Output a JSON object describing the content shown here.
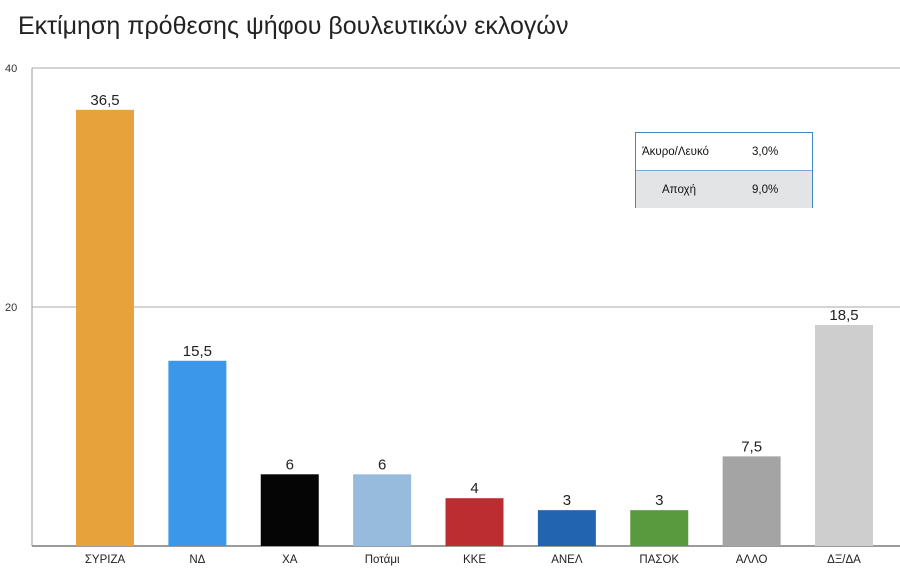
{
  "title": "Εκτίμηση πρόθεσης ψήφου βουλευτικών εκλογών",
  "chart_data": {
    "type": "bar",
    "categories": [
      "ΣΥΡΙΖΑ",
      "ΝΔ",
      "ΧΑ",
      "Ποτάμι",
      "ΚΚΕ",
      "ΑΝΕΛ",
      "ΠΑΣΟΚ",
      "ΑΛΛΟ",
      "ΔΞ/ΔΑ"
    ],
    "values": [
      36.5,
      15.5,
      6,
      6,
      4,
      3,
      3,
      7.5,
      18.5
    ],
    "value_labels": [
      "36,5",
      "15,5",
      "6",
      "6",
      "4",
      "3",
      "3",
      "7,5",
      "18,5"
    ],
    "colors": [
      "#e8a23c",
      "#3b97ea",
      "#050505",
      "#97bbdc",
      "#bb2d30",
      "#2264b0",
      "#5a9a3f",
      "#a4a4a4",
      "#cecece"
    ],
    "y_ticks": [
      "40",
      "20"
    ],
    "ylim": [
      0,
      40
    ],
    "grid": true
  },
  "table": {
    "rows": [
      {
        "label": "Άκυρο/Λευκό",
        "value": "3,0%"
      },
      {
        "label": "Αποχή",
        "value": "9,0%"
      }
    ]
  }
}
